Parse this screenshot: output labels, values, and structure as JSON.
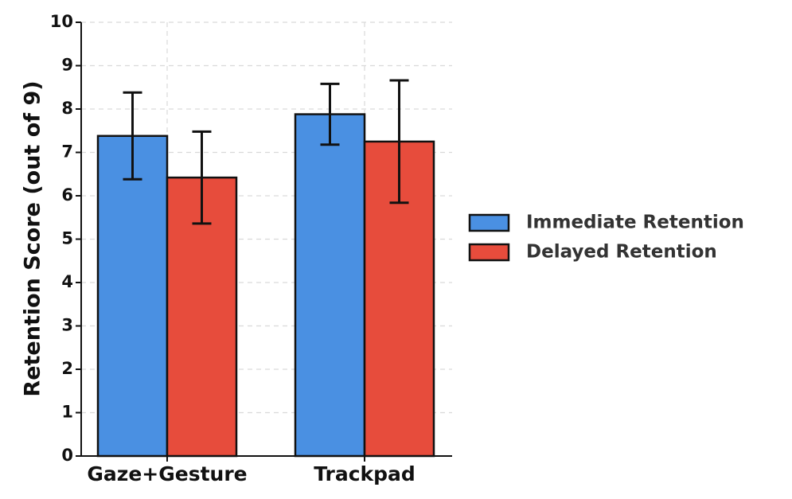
{
  "chart_data": {
    "type": "bar",
    "title": "",
    "xlabel": "",
    "ylabel": "Retention Score (out of 9)",
    "ylim": [
      0,
      10
    ],
    "yticks": [
      "0",
      "1",
      "2",
      "3",
      "4",
      "5",
      "6",
      "7",
      "8",
      "9",
      "10"
    ],
    "categories": [
      "Gaze+Gesture",
      "Trackpad"
    ],
    "series": [
      {
        "name": "Immediate Retention",
        "color": "#4a90e2",
        "values": [
          7.38,
          7.88
        ],
        "error": [
          1.0,
          0.7
        ]
      },
      {
        "name": "Delayed Retention",
        "color": "#e74c3c",
        "values": [
          6.42,
          7.25
        ],
        "error": [
          1.06,
          1.41
        ]
      }
    ],
    "grid": true,
    "legend_position": "right"
  }
}
